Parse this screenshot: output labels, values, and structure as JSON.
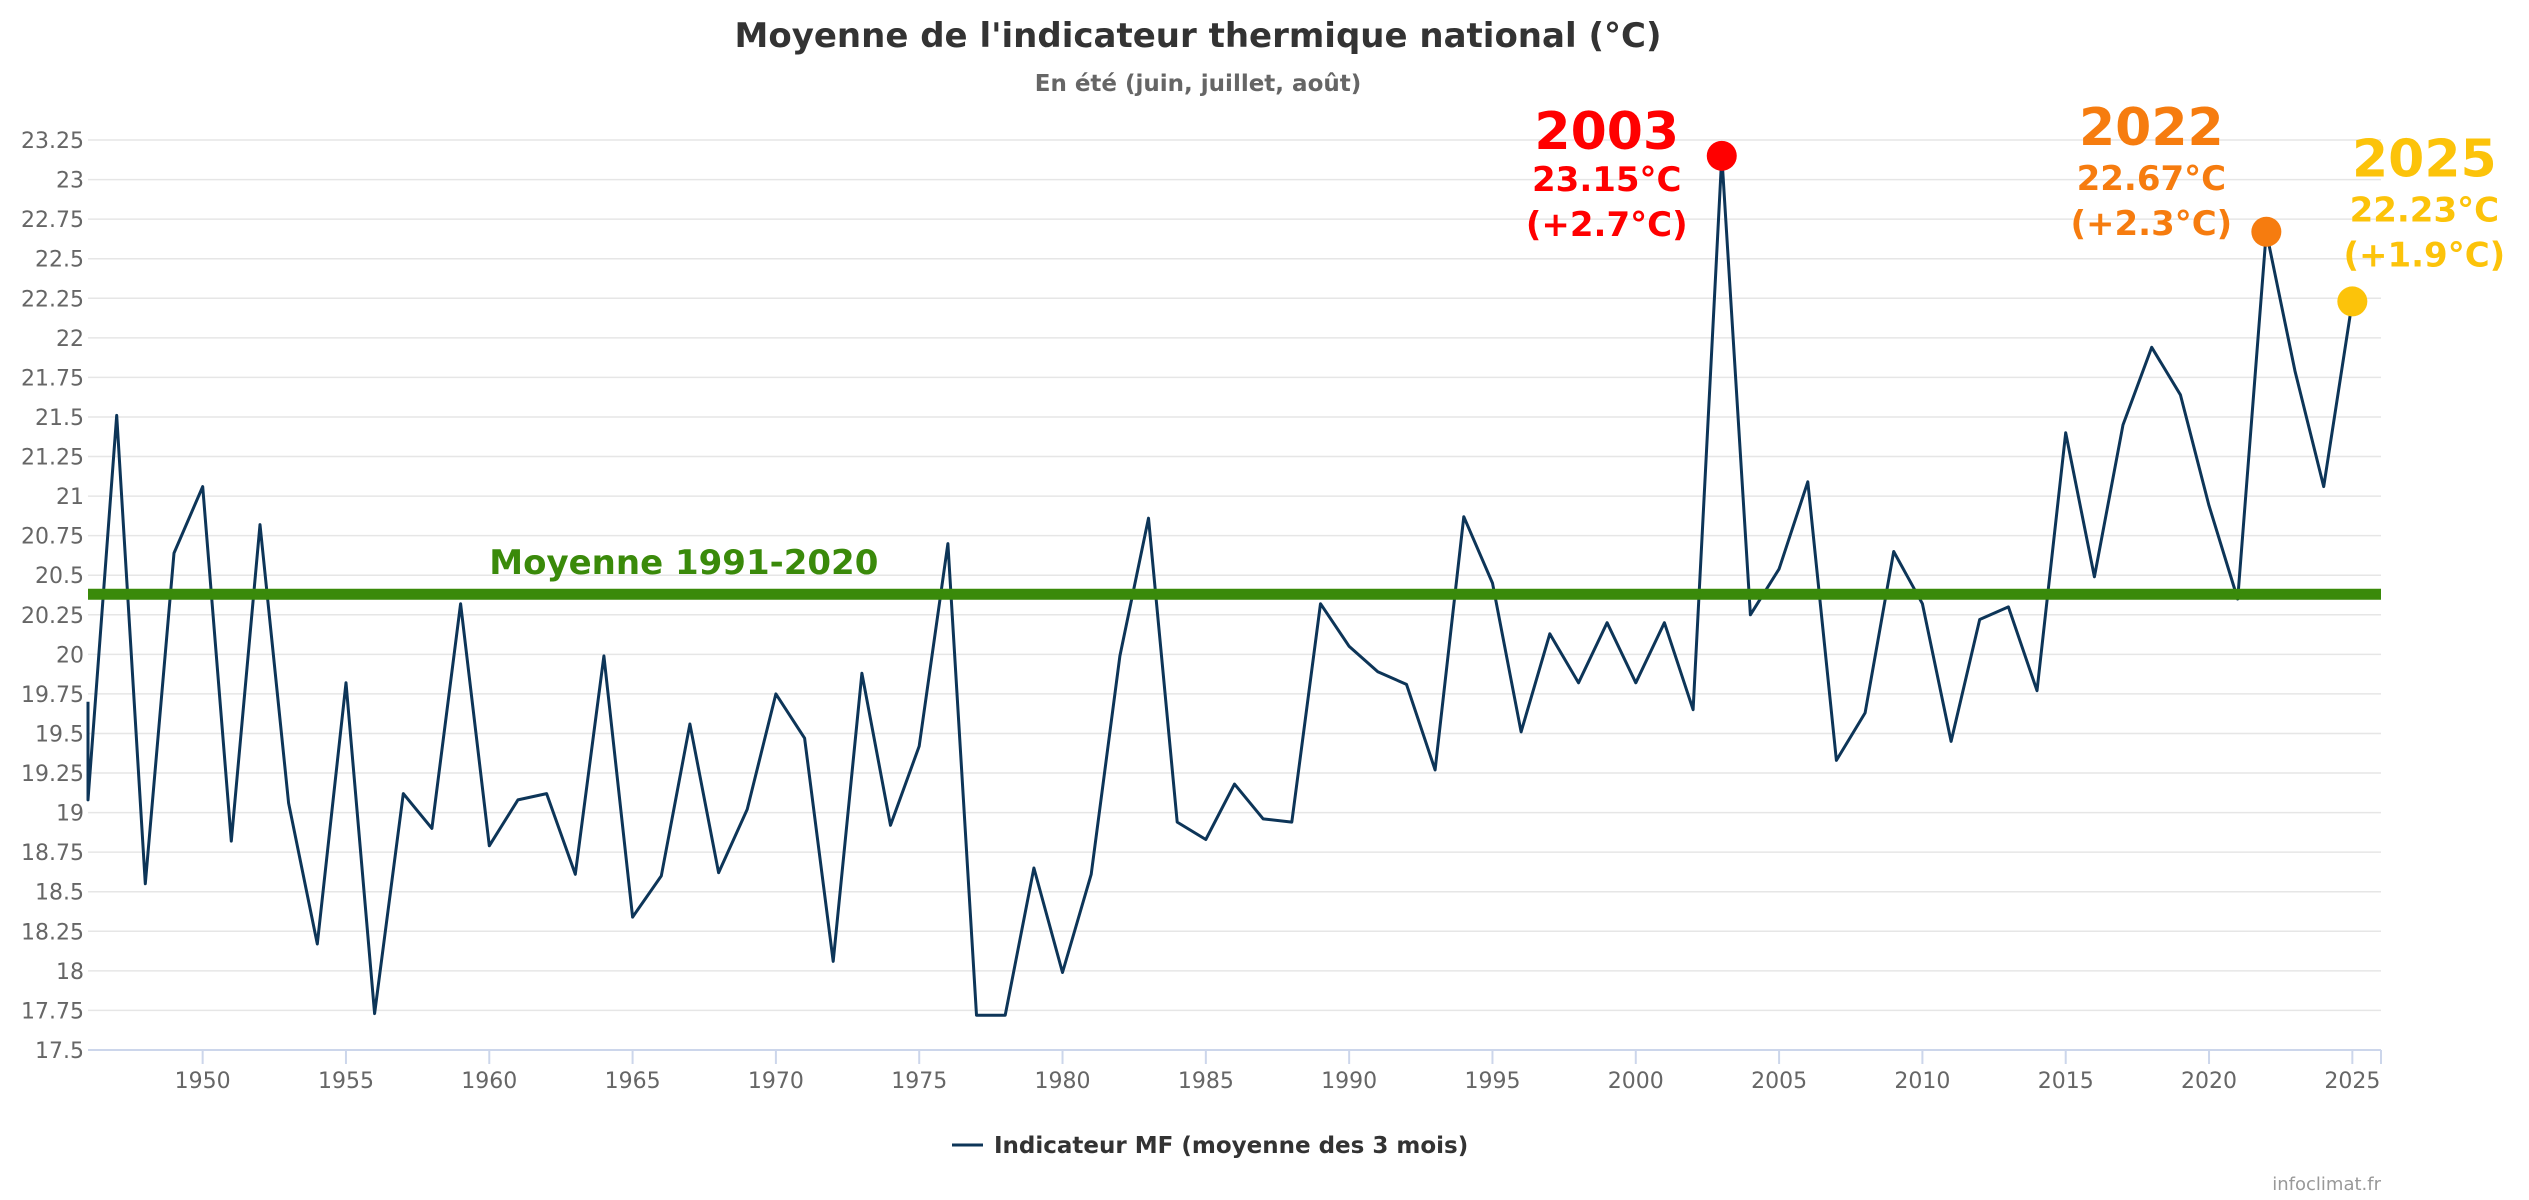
{
  "chart_data": {
    "type": "line",
    "title": "Moyenne de l'indicateur thermique national (°C)",
    "subtitle": "En été (juin, juillet, août)",
    "xlabel": "",
    "ylabel": "",
    "xlim": [
      1946,
      2026
    ],
    "ylim": [
      17.5,
      23.25
    ],
    "grid": true,
    "legend_position": "bottom-center",
    "x_ticks": [
      "1950",
      "1955",
      "1960",
      "1965",
      "1970",
      "1975",
      "1980",
      "1985",
      "1990",
      "1995",
      "2000",
      "2005",
      "2010",
      "2015",
      "2020",
      "2025"
    ],
    "y_ticks": [
      "17.5",
      "17.75",
      "18",
      "18.25",
      "18.5",
      "18.75",
      "19",
      "19.25",
      "19.5",
      "19.75",
      "20",
      "20.25",
      "20.5",
      "20.75",
      "21",
      "21.25",
      "21.5",
      "21.75",
      "22",
      "22.25",
      "22.5",
      "22.75",
      "23",
      "23.25"
    ],
    "series": [
      {
        "name": "Indicateur MF (moyenne des 3 mois)",
        "color": "#0d3558",
        "x": [
          1946,
          1947,
          1948,
          1949,
          1950,
          1951,
          1952,
          1953,
          1954,
          1955,
          1956,
          1957,
          1958,
          1959,
          1960,
          1961,
          1962,
          1963,
          1964,
          1965,
          1966,
          1967,
          1968,
          1969,
          1970,
          1971,
          1972,
          1973,
          1974,
          1975,
          1976,
          1977,
          1978,
          1979,
          1980,
          1981,
          1982,
          1983,
          1984,
          1985,
          1986,
          1987,
          1988,
          1989,
          1990,
          1991,
          1992,
          1993,
          1994,
          1995,
          1996,
          1997,
          1998,
          1999,
          2000,
          2001,
          2002,
          2003,
          2004,
          2005,
          2006,
          2007,
          2008,
          2009,
          2010,
          2011,
          2012,
          2013,
          2014,
          2015,
          2016,
          2017,
          2018,
          2019,
          2020,
          2021,
          2022,
          2023,
          2024,
          2025
        ],
        "values": [
          19.08,
          21.51,
          18.55,
          20.64,
          21.06,
          18.82,
          20.82,
          19.06,
          18.17,
          19.82,
          17.73,
          19.12,
          18.9,
          20.32,
          18.79,
          19.08,
          19.12,
          18.61,
          19.99,
          18.34,
          18.6,
          19.56,
          18.62,
          19.02,
          19.75,
          19.47,
          18.06,
          19.88,
          18.92,
          19.42,
          20.7,
          17.72,
          17.72,
          18.65,
          17.99,
          18.61,
          19.99,
          20.86,
          18.94,
          18.83,
          19.18,
          18.96,
          18.94,
          20.32,
          20.05,
          19.89,
          19.81,
          19.27,
          20.87,
          20.45,
          19.51,
          20.13,
          19.82,
          20.2,
          19.82,
          20.2,
          19.65,
          23.15,
          20.25,
          20.54,
          21.09,
          19.33,
          19.63,
          20.65,
          20.32,
          19.45,
          20.22,
          20.3,
          19.77,
          21.4,
          20.49,
          21.45,
          21.94,
          21.64,
          20.94,
          20.35,
          22.67,
          21.79,
          21.06,
          22.23
        ]
      }
    ],
    "reference_line": {
      "label": "Moyenne 1991-2020",
      "value": 20.38,
      "color": "#3a8a0a"
    },
    "annotations": [
      {
        "year": "2003",
        "value_label": "23.15°C",
        "anomaly_label": "(+2.7°C)",
        "x": 2003,
        "y": 23.15,
        "color": "#ff0000"
      },
      {
        "year": "2022",
        "value_label": "22.67°C",
        "anomaly_label": "(+2.3°C)",
        "x": 2022,
        "y": 22.67,
        "color": "#f67c0f"
      },
      {
        "year": "2025",
        "value_label": "22.23°C",
        "anomaly_label": "(+1.9°C)",
        "x": 2025,
        "y": 22.23,
        "color": "#fcc30a"
      }
    ],
    "credits": "infoclimat.fr"
  }
}
